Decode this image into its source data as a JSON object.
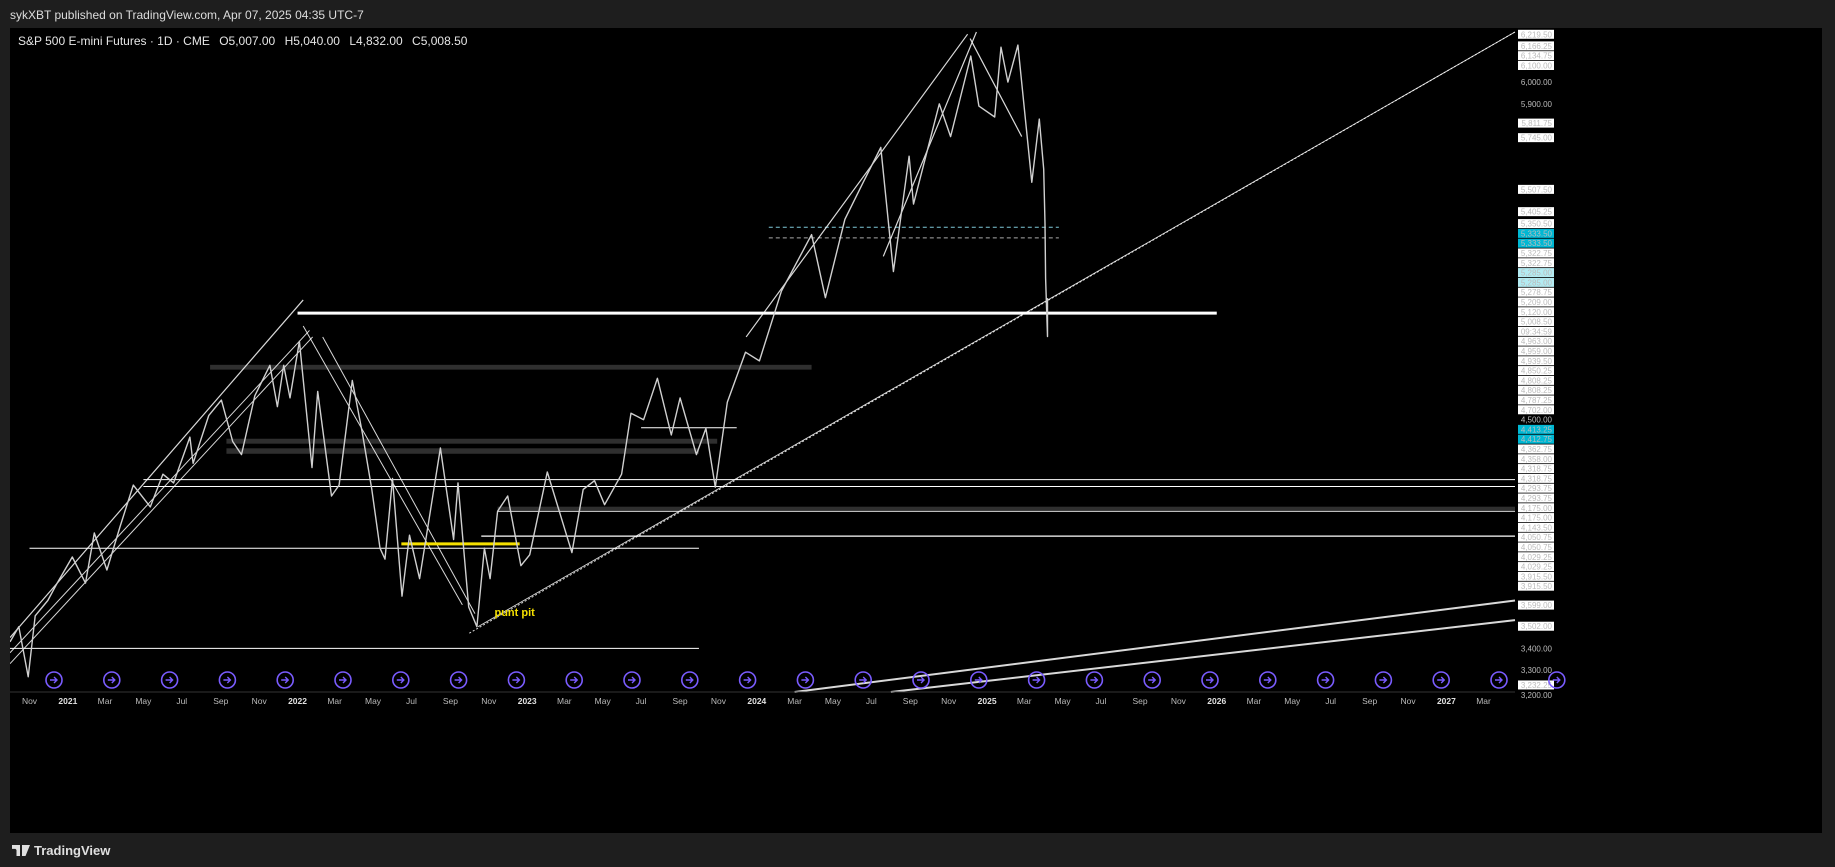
{
  "publisher": "sykXBT published on TradingView.com, Apr 07, 2025 04:35 UTC-7",
  "legend": {
    "symbol": "S&P 500 E-mini Futures · 1D · CME",
    "open": "O5,007.00",
    "high": "H5,040.00",
    "low": "L4,832.00",
    "close": "C5,008.50"
  },
  "footer": {
    "brand": "TradingView"
  },
  "colors": {
    "background": "#000000",
    "price": "#d0d0d0",
    "line": "#ffffff",
    "highlight": "#f5e000",
    "zone": "#555555",
    "cyan_label": "#00b8d4",
    "event_icon": "#7a5cff"
  },
  "chart_data": {
    "type": "line",
    "title": "S&P 500 E-mini Futures · 1D · CME",
    "ylim": [
      3200,
      6230
    ],
    "x_range": [
      "2020-10-01",
      "2027-04-20"
    ],
    "x_ticks": [
      "Nov",
      "2021",
      "Mar",
      "May",
      "Jul",
      "Sep",
      "Nov",
      "2022",
      "Mar",
      "May",
      "Jul",
      "Sep",
      "Nov",
      "2023",
      "Mar",
      "May",
      "Jul",
      "Sep",
      "Nov",
      "2024",
      "Mar",
      "May",
      "Jul",
      "Sep",
      "Nov",
      "2025",
      "Mar",
      "May",
      "Jul",
      "Sep",
      "Nov",
      "2026",
      "Mar",
      "May",
      "Jul",
      "Sep",
      "Nov",
      "2027",
      "Mar"
    ],
    "x_tick_dates": [
      "2020-11-01",
      "2021-01-01",
      "2021-03-01",
      "2021-05-01",
      "2021-07-01",
      "2021-09-01",
      "2021-11-01",
      "2022-01-01",
      "2022-03-01",
      "2022-05-01",
      "2022-07-01",
      "2022-09-01",
      "2022-11-01",
      "2023-01-01",
      "2023-03-01",
      "2023-05-01",
      "2023-07-01",
      "2023-09-01",
      "2023-11-01",
      "2024-01-01",
      "2024-03-01",
      "2024-05-01",
      "2024-07-01",
      "2024-09-01",
      "2024-11-01",
      "2025-01-01",
      "2025-03-01",
      "2025-05-01",
      "2025-07-01",
      "2025-09-01",
      "2025-11-01",
      "2026-01-01",
      "2026-03-01",
      "2026-05-01",
      "2026-07-01",
      "2026-09-01",
      "2026-11-01",
      "2027-01-01",
      "2027-03-01"
    ],
    "y_labels": [
      {
        "v": 6219.5,
        "t": "6,219.50",
        "box": true
      },
      {
        "v": 6166.25,
        "t": "6,166.25",
        "box": true
      },
      {
        "v": 6134.75,
        "t": "6,134.75",
        "box": true
      },
      {
        "v": 6100.0,
        "t": "6,100.00",
        "box": true
      },
      {
        "v": 6000.0,
        "t": "6,000.00",
        "box": false
      },
      {
        "v": 5900.0,
        "t": "5,900.00",
        "box": false
      },
      {
        "v": 5811.75,
        "t": "5,811.75",
        "box": true
      },
      {
        "v": 5745.0,
        "t": "5,745.00",
        "box": true
      },
      {
        "v": 5507.5,
        "t": "5,507.50",
        "box": true
      },
      {
        "v": 5405.25,
        "t": "5,405.25",
        "box": true
      },
      {
        "v": 5350.5,
        "t": "5,350.50",
        "box": true
      },
      {
        "v": 5333.5,
        "t": "5,333.50",
        "box": "cyan"
      },
      {
        "v": 5333.5,
        "t": "5,333.50",
        "box": "cyan"
      },
      {
        "v": 5322.75,
        "t": "5,322.75",
        "box": true
      },
      {
        "v": 5322.75,
        "t": "5,322.75",
        "box": true
      },
      {
        "v": 5285.0,
        "t": "5,285.00",
        "box": "light"
      },
      {
        "v": 5285.0,
        "t": "5,285.00",
        "box": "light"
      },
      {
        "v": 5278.75,
        "t": "5,278.75",
        "box": true
      },
      {
        "v": 5209.0,
        "t": "5,209.00",
        "box": true
      },
      {
        "v": 5120.0,
        "t": "5,120.00",
        "box": true
      },
      {
        "v": 5008.5,
        "t": "5,008.50",
        "box": true
      },
      {
        "v": 5008.5,
        "t": "09:34:59",
        "box": true
      },
      {
        "v": 4963.0,
        "t": "4,963.00",
        "box": true
      },
      {
        "v": 4959.0,
        "t": "4,959.00",
        "box": true
      },
      {
        "v": 4939.5,
        "t": "4,939.50",
        "box": true
      },
      {
        "v": 4850.25,
        "t": "4,850.25",
        "box": true
      },
      {
        "v": 4808.25,
        "t": "4,808.25",
        "box": true
      },
      {
        "v": 4808.25,
        "t": "4,808.25",
        "box": true
      },
      {
        "v": 4787.25,
        "t": "4,787.25",
        "box": true
      },
      {
        "v": 4702.0,
        "t": "4,702.00",
        "box": true
      },
      {
        "v": 4500.0,
        "t": "4,500.00",
        "box": false
      },
      {
        "v": 4413.25,
        "t": "4,413.25",
        "box": "cyan"
      },
      {
        "v": 4412.75,
        "t": "4,412.75",
        "box": "cyan"
      },
      {
        "v": 4362.75,
        "t": "4,362.75",
        "box": true
      },
      {
        "v": 4358.0,
        "t": "4,358.00",
        "box": true
      },
      {
        "v": 4318.75,
        "t": "4,318.75",
        "box": true
      },
      {
        "v": 4318.75,
        "t": "4,318.75",
        "box": true
      },
      {
        "v": 4293.75,
        "t": "4,293.75",
        "box": true
      },
      {
        "v": 4293.75,
        "t": "4,293.75",
        "box": true
      },
      {
        "v": 4175.0,
        "t": "4,175.00",
        "box": true
      },
      {
        "v": 4175.0,
        "t": "4,175.00",
        "box": true
      },
      {
        "v": 4143.5,
        "t": "4,143.50",
        "box": true
      },
      {
        "v": 4050.75,
        "t": "4,050.75",
        "box": true
      },
      {
        "v": 4050.75,
        "t": "4,050.75",
        "box": true
      },
      {
        "v": 4029.25,
        "t": "4,029.25",
        "box": true
      },
      {
        "v": 4029.25,
        "t": "4,029.25",
        "box": true
      },
      {
        "v": 3915.5,
        "t": "3,915.50",
        "box": true
      },
      {
        "v": 3915.5,
        "t": "3,915.50",
        "box": true
      },
      {
        "v": 3599.0,
        "t": "3,599.00",
        "box": true
      },
      {
        "v": 3502.0,
        "t": "3,502.00",
        "box": true
      },
      {
        "v": 3400.0,
        "t": "3,400.00",
        "box": false
      },
      {
        "v": 3300.0,
        "t": "3,300.00",
        "box": false
      },
      {
        "v": 3232.25,
        "t": "3,232.25",
        "box": true
      },
      {
        "v": 3200.0,
        "t": "3,200.00",
        "box": false
      }
    ],
    "series": [
      {
        "name": "",
        "points": [
          [
            "2020-10-01",
            3430
          ],
          [
            "2020-10-15",
            3500
          ],
          [
            "2020-10-30",
            3270
          ],
          [
            "2020-11-10",
            3550
          ],
          [
            "2020-11-30",
            3620
          ],
          [
            "2020-12-15",
            3700
          ],
          [
            "2021-01-08",
            3820
          ],
          [
            "2021-01-29",
            3700
          ],
          [
            "2021-02-12",
            3930
          ],
          [
            "2021-03-04",
            3760
          ],
          [
            "2021-03-25",
            3960
          ],
          [
            "2021-04-15",
            4150
          ],
          [
            "2021-05-12",
            4050
          ],
          [
            "2021-06-01",
            4200
          ],
          [
            "2021-06-18",
            4160
          ],
          [
            "2021-07-14",
            4370
          ],
          [
            "2021-07-19",
            4250
          ],
          [
            "2021-08-13",
            4470
          ],
          [
            "2021-09-02",
            4540
          ],
          [
            "2021-09-20",
            4350
          ],
          [
            "2021-10-04",
            4290
          ],
          [
            "2021-10-25",
            4560
          ],
          [
            "2021-11-18",
            4700
          ],
          [
            "2021-11-30",
            4510
          ],
          [
            "2021-12-10",
            4700
          ],
          [
            "2021-12-20",
            4550
          ],
          [
            "2022-01-04",
            4810
          ],
          [
            "2022-01-24",
            4230
          ],
          [
            "2022-02-02",
            4580
          ],
          [
            "2022-02-24",
            4100
          ],
          [
            "2022-03-08",
            4150
          ],
          [
            "2022-03-29",
            4630
          ],
          [
            "2022-04-14",
            4390
          ],
          [
            "2022-04-29",
            4130
          ],
          [
            "2022-05-12",
            3860
          ],
          [
            "2022-05-20",
            3810
          ],
          [
            "2022-06-01",
            4180
          ],
          [
            "2022-06-16",
            3640
          ],
          [
            "2022-06-28",
            3920
          ],
          [
            "2022-07-14",
            3720
          ],
          [
            "2022-08-16",
            4320
          ],
          [
            "2022-09-06",
            3900
          ],
          [
            "2022-09-13",
            4160
          ],
          [
            "2022-09-30",
            3590
          ],
          [
            "2022-10-13",
            3500
          ],
          [
            "2022-10-25",
            3860
          ],
          [
            "2022-11-03",
            3720
          ],
          [
            "2022-11-15",
            4030
          ],
          [
            "2022-12-01",
            4100
          ],
          [
            "2022-12-22",
            3780
          ],
          [
            "2023-01-05",
            3830
          ],
          [
            "2023-02-02",
            4210
          ],
          [
            "2023-03-13",
            3840
          ],
          [
            "2023-03-31",
            4130
          ],
          [
            "2023-04-18",
            4170
          ],
          [
            "2023-05-04",
            4060
          ],
          [
            "2023-05-31",
            4200
          ],
          [
            "2023-06-15",
            4480
          ],
          [
            "2023-07-05",
            4450
          ],
          [
            "2023-07-27",
            4640
          ],
          [
            "2023-08-18",
            4380
          ],
          [
            "2023-09-01",
            4550
          ],
          [
            "2023-09-27",
            4290
          ],
          [
            "2023-10-12",
            4410
          ],
          [
            "2023-10-27",
            4140
          ],
          [
            "2023-11-15",
            4530
          ],
          [
            "2023-12-14",
            4760
          ],
          [
            "2024-01-05",
            4720
          ],
          [
            "2024-02-09",
            5040
          ],
          [
            "2024-03-28",
            5300
          ],
          [
            "2024-04-19",
            5010
          ],
          [
            "2024-05-20",
            5370
          ],
          [
            "2024-06-18",
            5540
          ],
          [
            "2024-07-16",
            5700
          ],
          [
            "2024-08-05",
            5130
          ],
          [
            "2024-08-30",
            5660
          ],
          [
            "2024-09-06",
            5440
          ],
          [
            "2024-10-17",
            5900
          ],
          [
            "2024-11-04",
            5750
          ],
          [
            "2024-12-06",
            6120
          ],
          [
            "2024-12-19",
            5890
          ],
          [
            "2025-01-13",
            5840
          ],
          [
            "2025-01-23",
            6160
          ],
          [
            "2025-02-03",
            6000
          ],
          [
            "2025-02-19",
            6170
          ],
          [
            "2025-03-13",
            5540
          ],
          [
            "2025-03-25",
            5830
          ],
          [
            "2025-04-01",
            5600
          ],
          [
            "2025-04-03",
            5350
          ],
          [
            "2025-04-04",
            5100
          ],
          [
            "2025-04-07",
            4832
          ],
          [
            "2025-04-07",
            5008.5
          ]
        ]
      }
    ],
    "annotations": [
      {
        "text": "punt pit",
        "date": "2022-11-10",
        "value": 3550,
        "color": "#f5e000"
      }
    ]
  }
}
